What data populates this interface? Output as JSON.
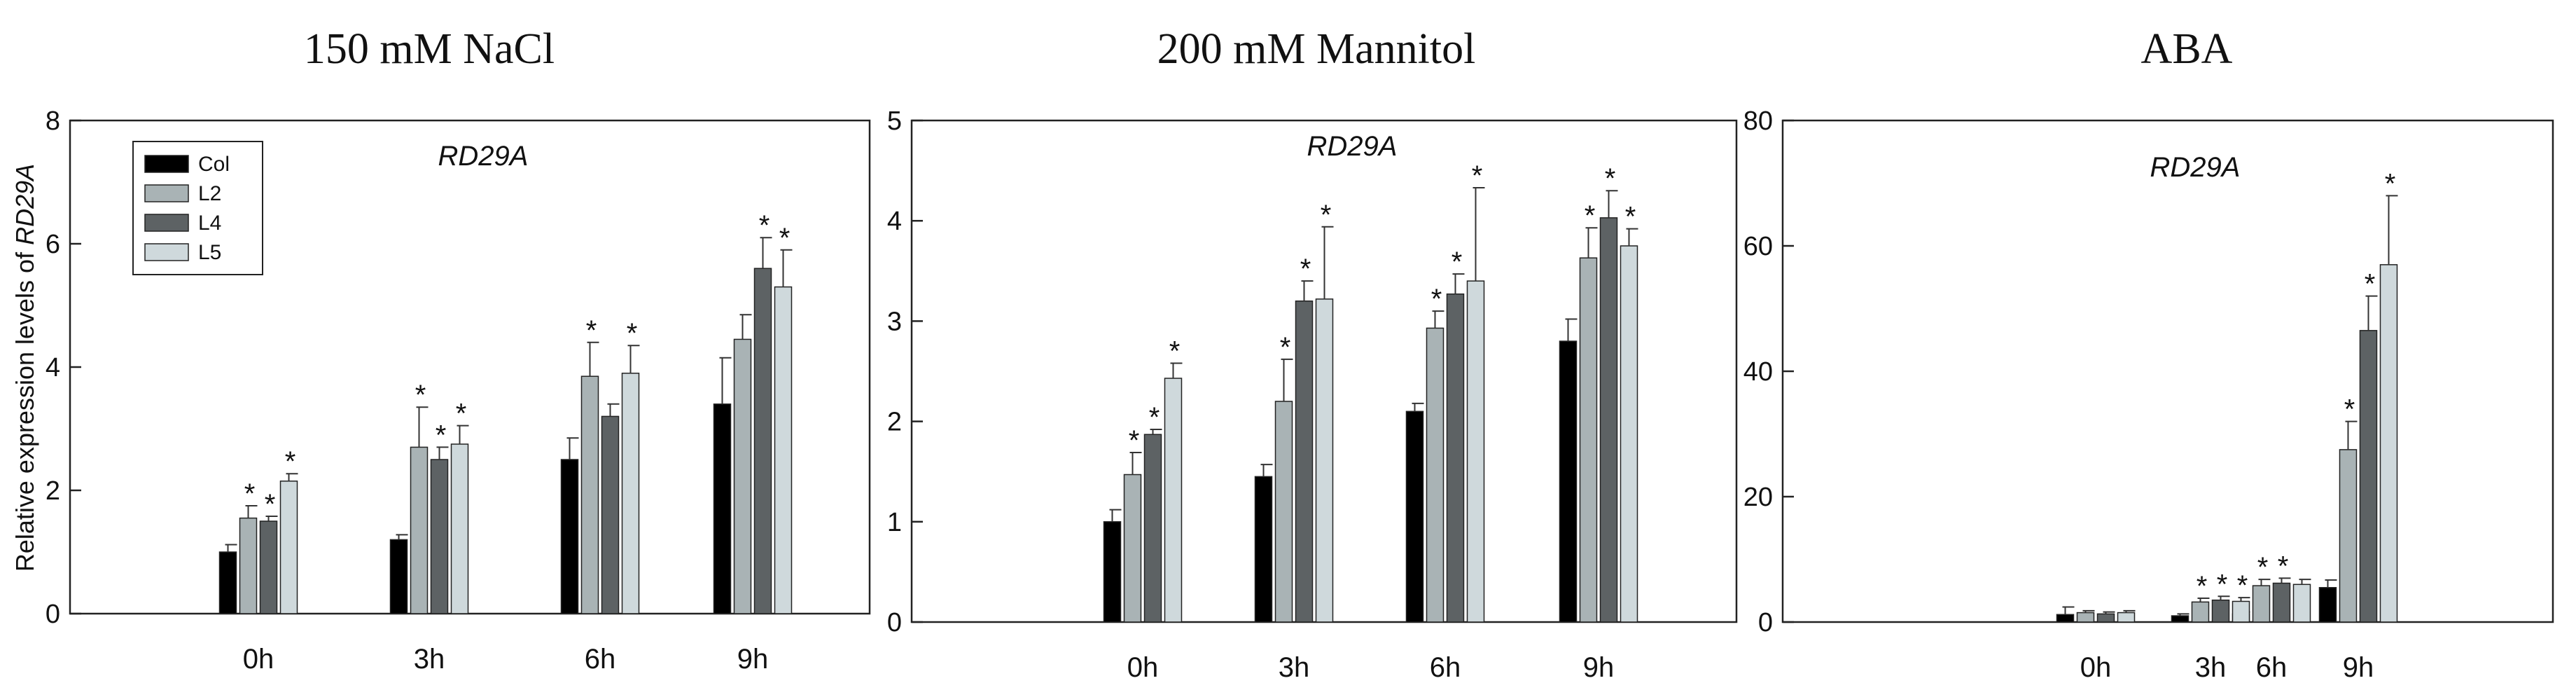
{
  "chart_data": [
    {
      "type": "bar",
      "title": "150 mM NaCl",
      "gene": "RD29A",
      "ylabel": "Relative expression levels of RD29A",
      "ylabel_prefix": "Relative expression levels of ",
      "ylabel_gene": "RD29A",
      "xlabel": "",
      "ylim": [
        0,
        8
      ],
      "yticks": [
        "0",
        "2",
        "4",
        "6",
        "8"
      ],
      "categories": [
        "0h",
        "3h",
        "6h",
        "9h"
      ],
      "legend": {
        "placement": "top-left",
        "entries": [
          "Col",
          "L2",
          "L4",
          "L5"
        ]
      },
      "series": [
        {
          "name": "Col",
          "color": "#000000",
          "values": [
            1.0,
            1.2,
            2.5,
            3.4
          ],
          "errors": [
            0.12,
            0.08,
            0.35,
            0.75
          ],
          "sig": [
            "",
            "",
            "",
            ""
          ]
        },
        {
          "name": "L2",
          "color": "#a9b3b5",
          "values": [
            1.55,
            2.7,
            3.85,
            4.45
          ],
          "errors": [
            0.2,
            0.65,
            0.55,
            0.4
          ],
          "sig": [
            "*",
            "*",
            "*",
            ""
          ]
        },
        {
          "name": "L4",
          "color": "#5d6264",
          "values": [
            1.5,
            2.5,
            3.2,
            5.6
          ],
          "errors": [
            0.08,
            0.2,
            0.2,
            0.5
          ],
          "sig": [
            "*",
            "*",
            "",
            "*"
          ]
        },
        {
          "name": "L5",
          "color": "#cfd9dc",
          "values": [
            2.15,
            2.75,
            3.9,
            5.3
          ],
          "errors": [
            0.12,
            0.3,
            0.45,
            0.6
          ],
          "sig": [
            "*",
            "*",
            "*",
            "*"
          ]
        }
      ]
    },
    {
      "type": "bar",
      "title": "200 mM Mannitol",
      "gene": "RD29A",
      "xlabel": "",
      "ylim": [
        0,
        5
      ],
      "yticks": [
        "0",
        "1",
        "2",
        "3",
        "4",
        "5"
      ],
      "categories": [
        "0h",
        "3h",
        "6h",
        "9h"
      ],
      "series": [
        {
          "name": "Col",
          "color": "#000000",
          "values": [
            1.0,
            1.45,
            2.1,
            2.8
          ],
          "errors": [
            0.12,
            0.12,
            0.08,
            0.22
          ],
          "sig": [
            "",
            "",
            "",
            ""
          ]
        },
        {
          "name": "L2",
          "color": "#a9b3b5",
          "values": [
            1.47,
            2.2,
            2.93,
            3.63
          ],
          "errors": [
            0.22,
            0.42,
            0.17,
            0.3
          ],
          "sig": [
            "*",
            "*",
            "*",
            "*"
          ]
        },
        {
          "name": "L4",
          "color": "#5d6264",
          "values": [
            1.87,
            3.2,
            3.27,
            4.03
          ],
          "errors": [
            0.05,
            0.2,
            0.2,
            0.27
          ],
          "sig": [
            "*",
            "*",
            "*",
            "*"
          ]
        },
        {
          "name": "L5",
          "color": "#cfd9dc",
          "values": [
            2.43,
            3.22,
            3.4,
            3.75
          ],
          "errors": [
            0.15,
            0.72,
            0.93,
            0.17
          ],
          "sig": [
            "*",
            "*",
            "*",
            "*"
          ]
        }
      ]
    },
    {
      "type": "bar",
      "title": "ABA",
      "gene": "RD29A",
      "xlabel": "",
      "ylim": [
        0,
        80
      ],
      "yticks": [
        "0",
        "20",
        "40",
        "60",
        "80"
      ],
      "categories": [
        "0h",
        "3h",
        "6h",
        "9h"
      ],
      "series": [
        {
          "name": "Col",
          "color": "#000000",
          "values": [
            1.2,
            1.0,
            1.3,
            5.5
          ],
          "errors": [
            1.2,
            0.3,
            0.3,
            1.2
          ],
          "sig": [
            "",
            "",
            "",
            ""
          ]
        },
        {
          "name": "L2",
          "color": "#a9b3b5",
          "values": [
            1.5,
            3.2,
            5.8,
            27.5
          ],
          "errors": [
            0.3,
            0.6,
            1.0,
            4.5
          ],
          "sig": [
            "",
            "*",
            "*",
            "*"
          ]
        },
        {
          "name": "L4",
          "color": "#5d6264",
          "values": [
            1.3,
            3.5,
            6.2,
            46.5
          ],
          "errors": [
            0.3,
            0.6,
            0.8,
            5.5
          ],
          "sig": [
            "",
            "*",
            "*",
            "*"
          ]
        },
        {
          "name": "L5",
          "color": "#cfd9dc",
          "values": [
            1.5,
            3.3,
            6.0,
            57.0
          ],
          "errors": [
            0.3,
            0.6,
            0.8,
            11.0
          ],
          "sig": [
            "",
            "*",
            "",
            "*"
          ]
        }
      ]
    }
  ]
}
